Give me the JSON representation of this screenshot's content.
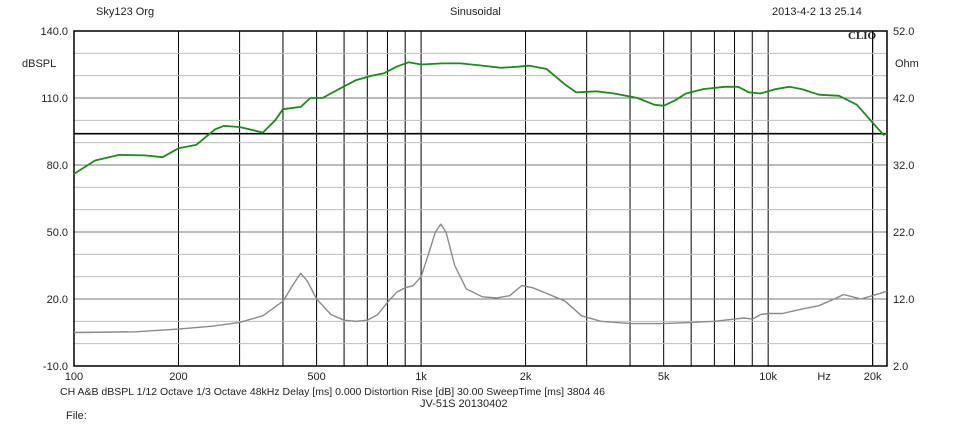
{
  "header": {
    "left": "Sky123 Org",
    "center": "Sinusoidal",
    "right": "2013-4-2 13 25.14",
    "brand": "CLIO"
  },
  "footer": {
    "line1": "CH A&B  dBSPL   1/12 Octave   1/3 Octave   48kHz   Delay [ms] 0.000   Distortion Rise [dB] 30.00   SweepTime [ms] 3804 46",
    "line2": "JV-51S  20130402",
    "file_label": "File:"
  },
  "chart_data": {
    "type": "line",
    "x_scale": "log",
    "xlim": [
      100,
      22000
    ],
    "x_tick_labels": [
      "100",
      "200",
      "500",
      "1k",
      "2k",
      "5k",
      "10k",
      "Hz",
      "20k"
    ],
    "x_tick_values": [
      100,
      200,
      500,
      1000,
      2000,
      5000,
      10000,
      14500,
      20000
    ],
    "ylabel": "dBSPL",
    "ylim": [
      -10,
      140
    ],
    "y_ticks": [
      140,
      110,
      80,
      50,
      20,
      -10
    ],
    "y_tick_labels": [
      "140.0",
      "110.0",
      "80.0",
      "50.0",
      "20.0",
      "-10.0"
    ],
    "y2label": "Ohm",
    "y2lim": [
      2,
      52
    ],
    "y2_ticks": [
      52,
      42,
      32,
      22,
      12,
      2
    ],
    "y2_tick_labels": [
      "52.0",
      "42.0",
      "32.0",
      "22.0",
      "12.0",
      "2.0"
    ],
    "grid": true,
    "series": [
      {
        "axis": "left",
        "color": "#1a8c1a",
        "points": [
          [
            100,
            76
          ],
          [
            115,
            82
          ],
          [
            135,
            84.5
          ],
          [
            160,
            84.3
          ],
          [
            180,
            83.5
          ],
          [
            200,
            87.5
          ],
          [
            225,
            89
          ],
          [
            255,
            96
          ],
          [
            270,
            97.5
          ],
          [
            300,
            97
          ],
          [
            330,
            95.5
          ],
          [
            350,
            94.5
          ],
          [
            380,
            100
          ],
          [
            400,
            105
          ],
          [
            450,
            106
          ],
          [
            480,
            110
          ],
          [
            520,
            110
          ],
          [
            580,
            114
          ],
          [
            650,
            118
          ],
          [
            720,
            120
          ],
          [
            780,
            121
          ],
          [
            850,
            124
          ],
          [
            920,
            126
          ],
          [
            1000,
            125
          ],
          [
            1150,
            125.5
          ],
          [
            1300,
            125.5
          ],
          [
            1500,
            124.5
          ],
          [
            1700,
            123.5
          ],
          [
            1900,
            124
          ],
          [
            2050,
            124.5
          ],
          [
            2300,
            123
          ],
          [
            2600,
            116
          ],
          [
            2800,
            112.5
          ],
          [
            3200,
            113
          ],
          [
            3600,
            112
          ],
          [
            4200,
            110
          ],
          [
            4700,
            107
          ],
          [
            5000,
            106.5
          ],
          [
            5400,
            109
          ],
          [
            5800,
            112
          ],
          [
            6500,
            114
          ],
          [
            7500,
            115
          ],
          [
            8200,
            115
          ],
          [
            8800,
            112.5
          ],
          [
            9500,
            112
          ],
          [
            10500,
            114
          ],
          [
            11500,
            115
          ],
          [
            12500,
            114
          ],
          [
            14000,
            111.5
          ],
          [
            16000,
            111
          ],
          [
            18000,
            107
          ],
          [
            20000,
            99
          ],
          [
            21500,
            93.5
          ],
          [
            22000,
            94
          ]
        ]
      },
      {
        "axis": "left",
        "color": "#8a8a8a",
        "points": [
          [
            100,
            5
          ],
          [
            150,
            5.3
          ],
          [
            200,
            6.5
          ],
          [
            250,
            7.8
          ],
          [
            300,
            9.5
          ],
          [
            350,
            12.5
          ],
          [
            400,
            19
          ],
          [
            430,
            27
          ],
          [
            450,
            31.5
          ],
          [
            470,
            28
          ],
          [
            500,
            20
          ],
          [
            550,
            13
          ],
          [
            600,
            10.5
          ],
          [
            650,
            10
          ],
          [
            700,
            10.5
          ],
          [
            750,
            13
          ],
          [
            800,
            18.5
          ],
          [
            850,
            23
          ],
          [
            900,
            25
          ],
          [
            950,
            26
          ],
          [
            1000,
            30
          ],
          [
            1050,
            40
          ],
          [
            1100,
            50
          ],
          [
            1140,
            53.5
          ],
          [
            1180,
            50
          ],
          [
            1250,
            35
          ],
          [
            1350,
            24.5
          ],
          [
            1500,
            21
          ],
          [
            1650,
            20.5
          ],
          [
            1800,
            21.5
          ],
          [
            1950,
            26
          ],
          [
            2100,
            25
          ],
          [
            2300,
            22.5
          ],
          [
            2600,
            19
          ],
          [
            2900,
            12.5
          ],
          [
            3300,
            10
          ],
          [
            4000,
            9
          ],
          [
            5000,
            9
          ],
          [
            6000,
            9.5
          ],
          [
            7000,
            10
          ],
          [
            8000,
            11
          ],
          [
            8500,
            11.5
          ],
          [
            9000,
            11
          ],
          [
            9500,
            13
          ],
          [
            10000,
            13.5
          ],
          [
            11000,
            13.5
          ],
          [
            12500,
            15.5
          ],
          [
            14000,
            17
          ],
          [
            15500,
            20
          ],
          [
            16500,
            22
          ],
          [
            17500,
            21
          ],
          [
            18500,
            20
          ],
          [
            20000,
            21.5
          ],
          [
            22000,
            23.5
          ]
        ]
      }
    ]
  }
}
